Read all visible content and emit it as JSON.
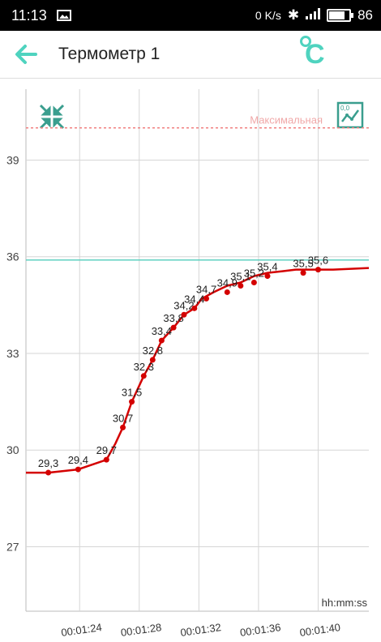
{
  "status_bar": {
    "time": "11:13",
    "image_icon": "image-icon",
    "data_speed": "0 K/s",
    "battery_percent": "86",
    "battery_level": 0.86
  },
  "app_bar": {
    "title": "Термометр 1",
    "back_icon": "arrow-left-icon",
    "unit_icon": "celsius-icon",
    "accent_color": "#4fd3bf"
  },
  "chart_toolbar": {
    "collapse_icon": "collapse-arrows-icon",
    "chart_style_icon": "chart-line-icon"
  },
  "chart_data": {
    "type": "line",
    "xlabel": "hh:mm:ss",
    "ylabel": "",
    "x_ticks": [
      "00:01:24",
      "00:01:28",
      "00:01:32",
      "00:01:36",
      "00:01:40"
    ],
    "x_tick_values": [
      84,
      88,
      92,
      96,
      100
    ],
    "xlim": [
      80.4,
      103.4
    ],
    "y_ticks": [
      "39",
      "36",
      "33",
      "30",
      "27"
    ],
    "y_tick_values": [
      39,
      36,
      33,
      30,
      27
    ],
    "ylim": [
      25,
      41.2
    ],
    "grid": true,
    "max_line": {
      "label": "Максимальная",
      "value": 40.0,
      "color": "#f08080"
    },
    "target_line": {
      "value": 35.9,
      "color": "#5fd0c0"
    },
    "series": [
      {
        "color": "#d40000",
        "x": [
          80.4,
          81.9,
          83.9,
          85.8,
          86.4,
          86.9,
          87.5,
          88.3,
          88.9,
          89.5,
          90.3,
          91.0,
          91.7,
          92.2,
          93.0,
          93.9,
          94.8,
          95.7,
          96.6,
          97.6,
          98.5,
          99.9,
          101.0,
          103.4
        ],
        "y": [
          29.3,
          29.3,
          29.4,
          29.7,
          30.2,
          30.7,
          31.5,
          32.3,
          32.8,
          33.4,
          33.8,
          34.2,
          34.4,
          34.7,
          34.9,
          35.1,
          35.2,
          35.4,
          35.5,
          35.55,
          35.6,
          35.6,
          35.6,
          35.65
        ],
        "points": [
          {
            "x": 81.9,
            "y": 29.3,
            "label": "29,3"
          },
          {
            "x": 83.9,
            "y": 29.4,
            "label": "29,4"
          },
          {
            "x": 85.8,
            "y": 29.7,
            "label": "29,7"
          },
          {
            "x": 86.9,
            "y": 30.7,
            "label": "30,7"
          },
          {
            "x": 87.5,
            "y": 31.5,
            "label": "31,5"
          },
          {
            "x": 88.3,
            "y": 32.3,
            "label": "32,3"
          },
          {
            "x": 88.9,
            "y": 32.8,
            "label": "32,8"
          },
          {
            "x": 89.5,
            "y": 33.4,
            "label": "33,4"
          },
          {
            "x": 90.3,
            "y": 33.8,
            "label": "33,8"
          },
          {
            "x": 91.0,
            "y": 34.2,
            "label": "34,2"
          },
          {
            "x": 91.7,
            "y": 34.4,
            "label": "34,4"
          },
          {
            "x": 92.5,
            "y": 34.7,
            "label": "34,7"
          },
          {
            "x": 93.9,
            "y": 34.9,
            "label": "34,9"
          },
          {
            "x": 94.8,
            "y": 35.1,
            "label": "35,1"
          },
          {
            "x": 95.7,
            "y": 35.2,
            "label": "35,2"
          },
          {
            "x": 96.6,
            "y": 35.4,
            "label": "35,4"
          },
          {
            "x": 99.0,
            "y": 35.5,
            "label": "35,5"
          },
          {
            "x": 100.0,
            "y": 35.6,
            "label": "35,6"
          }
        ]
      }
    ]
  }
}
